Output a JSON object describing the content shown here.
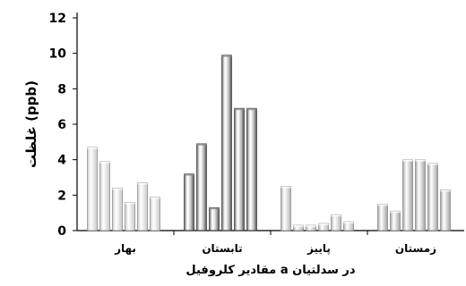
{
  "chart_data": {
    "type": "bar",
    "title": "",
    "xlabel": "مقادیر کلروفیل a در سدلتیان",
    "ylabel": "غلظت (ppb)",
    "ylim": [
      0,
      12
    ],
    "yticks": [
      0,
      2,
      4,
      6,
      8,
      10,
      12
    ],
    "grid": false,
    "legend": "none",
    "groups": [
      {
        "label": "بهار",
        "color": "#c8c8c8",
        "values": [
          4.7,
          3.9,
          2.4,
          1.6,
          2.7,
          1.9
        ]
      },
      {
        "label": "تابستان",
        "color": "#4a4a4a",
        "values": [
          3.2,
          4.9,
          1.3,
          9.9,
          6.9,
          6.9
        ]
      },
      {
        "label": "پاییز",
        "color": "#b4b4b4",
        "values": [
          2.5,
          0.3,
          0.3,
          0.4,
          0.9,
          0.5
        ]
      },
      {
        "label": "زمستان",
        "color": "#a0a0a0",
        "values": [
          1.5,
          1.1,
          4.0,
          4.0,
          3.8,
          2.3
        ]
      }
    ]
  }
}
